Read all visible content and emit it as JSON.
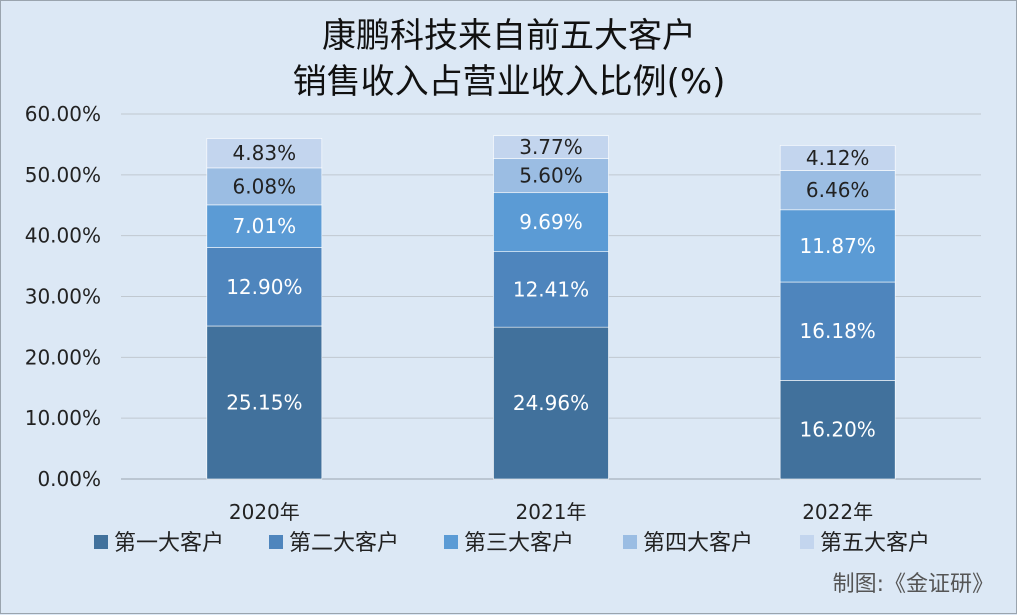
{
  "chart_data": {
    "type": "bar",
    "stacked": true,
    "title_lines": [
      "康鹏科技来自前五大客户",
      "销售收入占营业收入比例(%)"
    ],
    "categories": [
      "2020年",
      "2021年",
      "2022年"
    ],
    "ylim": [
      0,
      60
    ],
    "yticks": [
      0,
      10,
      20,
      30,
      40,
      50,
      60
    ],
    "ytick_labels": [
      "0.00%",
      "10.00%",
      "20.00%",
      "30.00%",
      "40.00%",
      "50.00%",
      "60.00%"
    ],
    "grid": true,
    "legend_position": "bottom",
    "series": [
      {
        "name": "第一大客户",
        "color": "#41719c",
        "values": [
          25.15,
          24.96,
          16.2
        ],
        "labels": [
          "25.15%",
          "24.96%",
          "16.20%"
        ]
      },
      {
        "name": "第二大客户",
        "color": "#4e85bd",
        "values": [
          12.9,
          12.41,
          16.18
        ],
        "labels": [
          "12.90%",
          "12.41%",
          "16.18%"
        ]
      },
      {
        "name": "第三大客户",
        "color": "#5b9bd5",
        "values": [
          7.01,
          9.69,
          11.87
        ],
        "labels": [
          "7.01%",
          "9.69%",
          "11.87%"
        ]
      },
      {
        "name": "第四大客户",
        "color": "#9bbde3",
        "values": [
          6.08,
          5.6,
          6.46
        ],
        "labels": [
          "6.08%",
          "5.60%",
          "6.46%"
        ]
      },
      {
        "name": "第五大客户",
        "color": "#c3d5ee",
        "values": [
          4.83,
          3.77,
          4.12
        ],
        "labels": [
          "4.83%",
          "3.77%",
          "4.12%"
        ]
      }
    ]
  },
  "credit": "制图:《金证研》"
}
